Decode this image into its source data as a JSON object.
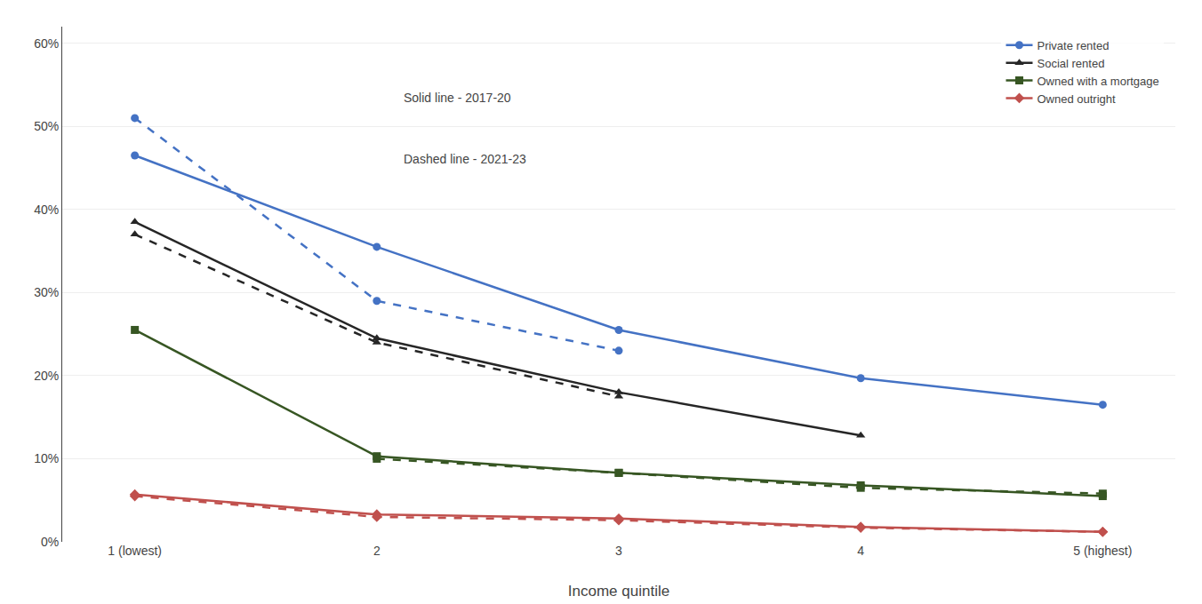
{
  "chart_data": {
    "type": "line",
    "xlabel": "Income quintile",
    "categories": [
      "1 (lowest)",
      "2",
      "3",
      "4",
      "5 (highest)"
    ],
    "ylim": [
      0,
      0.62
    ],
    "yticks": [
      {
        "value": 0.0,
        "label": "0%"
      },
      {
        "value": 0.1,
        "label": "10%"
      },
      {
        "value": 0.2,
        "label": "20%"
      },
      {
        "value": 0.3,
        "label": "30%"
      },
      {
        "value": 0.4,
        "label": "40%"
      },
      {
        "value": 0.5,
        "label": "50%"
      },
      {
        "value": 0.6,
        "label": "60%"
      }
    ],
    "grid": true,
    "legend": "upper right",
    "annotations": [
      "Solid line - 2017-20",
      "Dashed line - 2021-23"
    ],
    "series": [
      {
        "name": "Private rented",
        "color": "#4472C4",
        "marker": "circle",
        "line_style": "solid",
        "values": [
          0.465,
          0.355,
          0.255,
          0.197,
          0.165
        ]
      },
      {
        "color": "#4472C4",
        "marker": "circle",
        "line_style": "dashed",
        "values": [
          0.51,
          0.29,
          0.23,
          null,
          null
        ]
      },
      {
        "name": "Social rented",
        "color": "#262626",
        "marker": "triangle-up",
        "line_style": "solid",
        "values": [
          0.385,
          0.245,
          0.18,
          0.128,
          null
        ]
      },
      {
        "color": "#262626",
        "marker": "triangle-up",
        "line_style": "dashed",
        "values": [
          0.37,
          0.24,
          0.175,
          null,
          null
        ]
      },
      {
        "name": "Owned with a mortgage",
        "color": "#375623",
        "marker": "square",
        "line_style": "solid",
        "values": [
          0.255,
          0.103,
          0.083,
          0.068,
          0.055
        ]
      },
      {
        "color": "#375623",
        "marker": "square",
        "line_style": "dashed",
        "values": [
          null,
          0.1,
          0.083,
          0.065,
          0.058
        ]
      },
      {
        "name": "Owned outright",
        "color": "#C0504D",
        "marker": "diamond",
        "line_style": "solid",
        "values": [
          0.057,
          0.033,
          0.028,
          0.018,
          0.012
        ]
      },
      {
        "color": "#C0504D",
        "marker": "diamond",
        "line_style": "dashed",
        "values": [
          0.055,
          0.03,
          0.026,
          0.017,
          0.012
        ]
      }
    ]
  }
}
